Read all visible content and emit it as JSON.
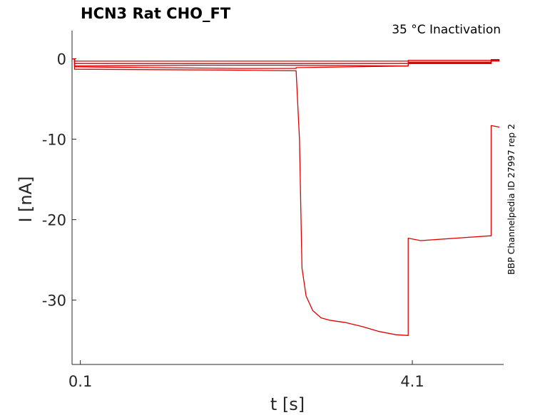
{
  "chart_data": {
    "type": "line",
    "title": "HCN3  Rat  CHO_FT",
    "annotation": "35 °C  Inactivation",
    "side_label": "BBP Channelpedia ID 27997 rep 2",
    "xlabel": "t [s]",
    "ylabel": "I [nA]",
    "x_ticks": [
      "0.1",
      "4.1"
    ],
    "y_ticks": [
      "0",
      "-10",
      "-20",
      "-30"
    ],
    "xlim": [
      0.0,
      5.2
    ],
    "ylim": [
      -38,
      3.5
    ],
    "grid": false,
    "line_color": "#e00000",
    "series": [
      {
        "x": [
          0.0,
          0.03,
          0.03,
          4.05,
          4.05,
          5.05,
          5.05,
          5.15
        ],
        "y": [
          0,
          0,
          -0.3,
          -0.3,
          -0.2,
          -0.2,
          -0.1,
          -0.1
        ]
      },
      {
        "x": [
          0.0,
          0.03,
          0.03,
          4.05,
          4.05,
          5.05,
          5.05,
          5.15
        ],
        "y": [
          0,
          0,
          -0.6,
          -0.6,
          -0.4,
          -0.4,
          -0.2,
          -0.2
        ]
      },
      {
        "x": [
          0.0,
          0.03,
          0.03,
          1.5,
          2.5,
          4.05,
          4.05,
          5.05,
          5.05,
          5.15
        ],
        "y": [
          0,
          0,
          -0.9,
          -0.8,
          -0.8,
          -0.9,
          -0.5,
          -0.5,
          -0.2,
          -0.2
        ]
      },
      {
        "x": [
          0.0,
          0.03,
          0.03,
          1.0,
          2.0,
          2.7,
          2.7,
          4.05,
          4.05,
          5.05,
          5.05,
          5.15
        ],
        "y": [
          0,
          0,
          -1.0,
          -1.1,
          -1.2,
          -1.2,
          -1.1,
          -0.9,
          -0.6,
          -0.6,
          -0.3,
          -0.3
        ]
      },
      {
        "x": [
          0.0,
          0.03,
          0.03,
          1.8,
          2.7,
          2.74,
          2.77,
          2.82,
          2.9,
          3.0,
          3.1,
          3.3,
          3.5,
          3.7,
          3.9,
          4.05,
          4.05,
          4.2,
          5.05,
          5.05,
          5.15
        ],
        "y": [
          0,
          0,
          -1.3,
          -1.4,
          -1.5,
          -10,
          -26,
          -29.5,
          -31.3,
          -32.2,
          -32.5,
          -32.8,
          -33.3,
          -33.9,
          -34.3,
          -34.4,
          -22.3,
          -22.6,
          -22.0,
          -8.3,
          -8.5
        ]
      }
    ]
  }
}
